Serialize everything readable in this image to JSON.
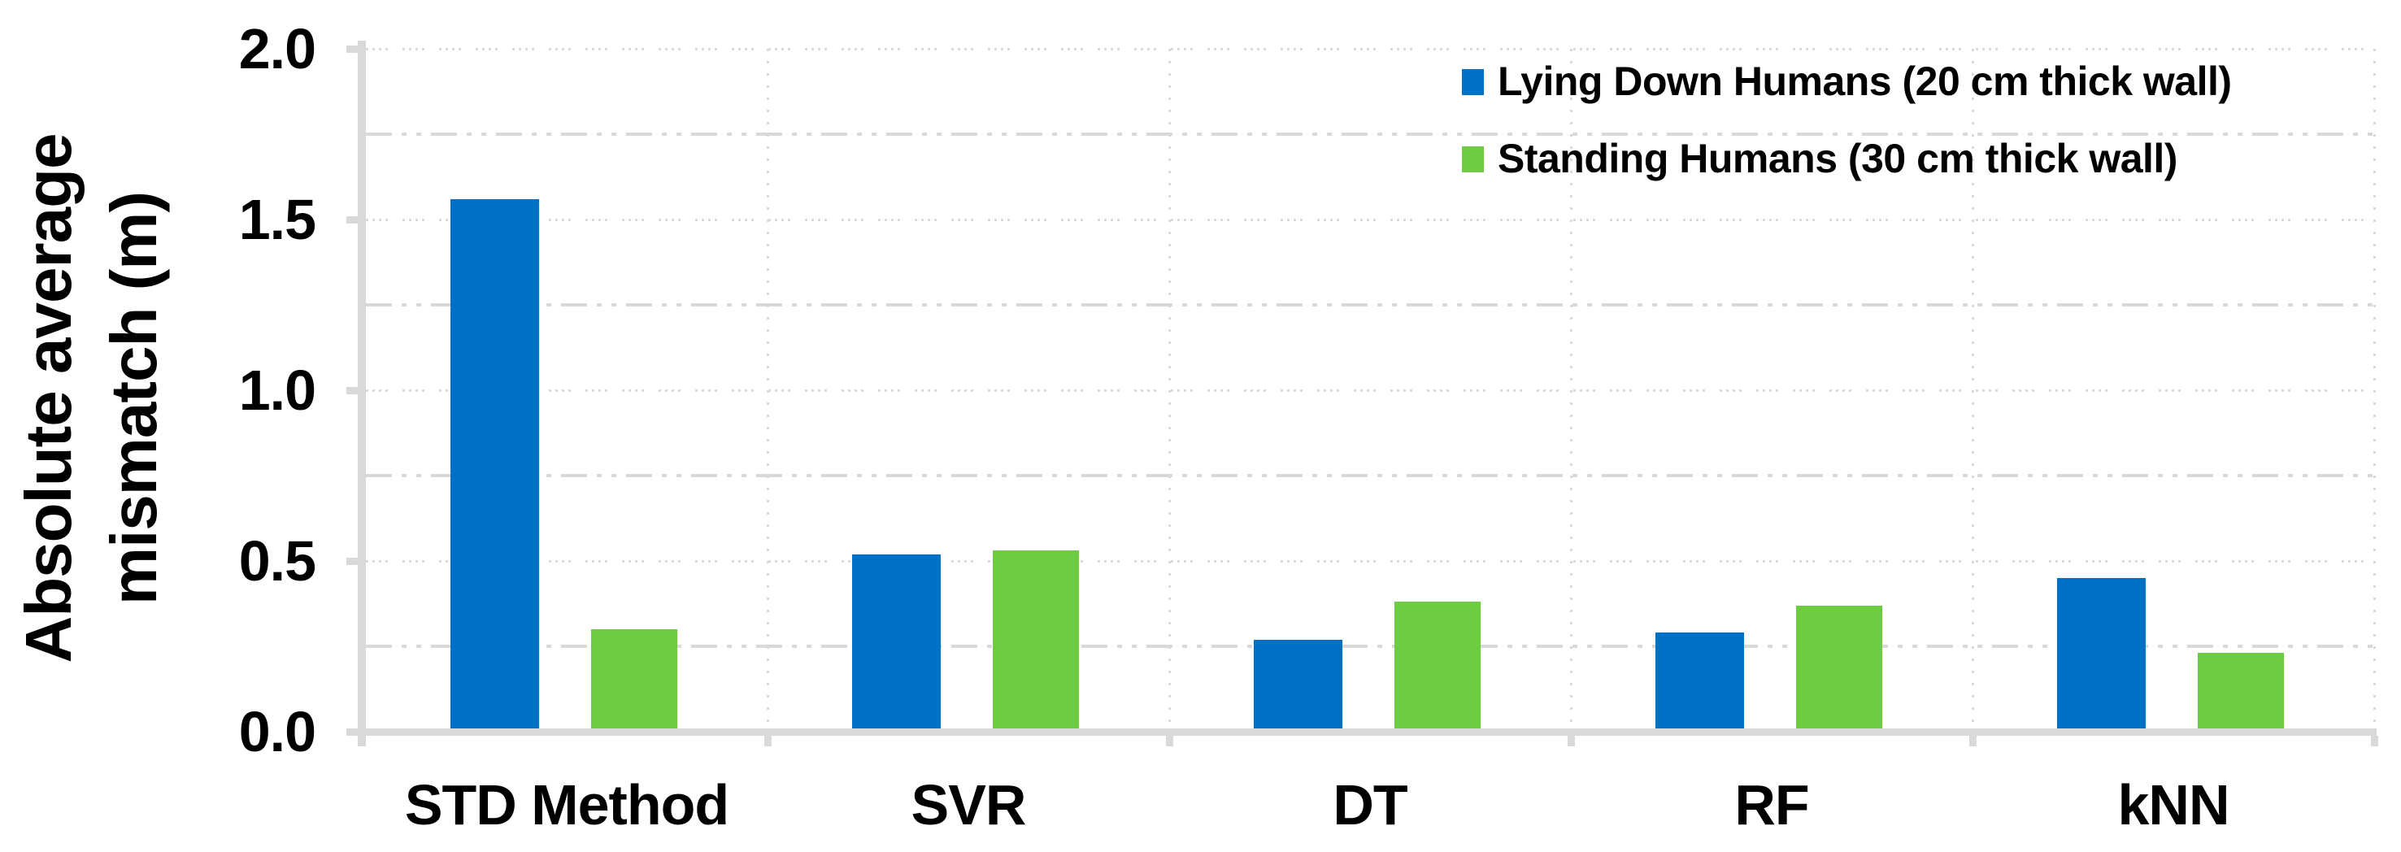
{
  "figure": {
    "background": "#FFFFFF",
    "text_color": "#000000",
    "axis_color": "#D9D9D9"
  },
  "chart_data": {
    "type": "bar",
    "title": "",
    "xlabel": "",
    "ylabel": "Absolute average mismatch (m)",
    "ylabel_lines": [
      "Absolute average",
      "mismatch (m)"
    ],
    "categories": [
      "STD Method",
      "SVR",
      "DT",
      "RF",
      "kNN"
    ],
    "series": [
      {
        "name": "Lying Down Humans (20 cm thick wall)",
        "color": "#0071C5",
        "values": [
          1.56,
          0.52,
          0.27,
          0.29,
          0.45
        ]
      },
      {
        "name": "Standing Humans (30 cm thick wall)",
        "color": "#6CCB40",
        "values": [
          0.3,
          0.53,
          0.38,
          0.37,
          0.23
        ]
      }
    ],
    "ylim": [
      0,
      2
    ],
    "yticks": [
      {
        "value": 0.0,
        "label": "0.0"
      },
      {
        "value": 0.5,
        "label": "0.5"
      },
      {
        "value": 1.0,
        "label": "1.0"
      },
      {
        "value": 1.5,
        "label": "1.5"
      },
      {
        "value": 2.0,
        "label": "2.0"
      }
    ],
    "major_gridline_step": 0.5,
    "minor_gridline_step": 0.25,
    "grid_color": "#D9D9D9",
    "grid_style": {
      "major": "dotted",
      "minor": "long-dash-dot-dot"
    },
    "vertical_separators": "dotted at category boundaries",
    "legend_position": "top-right",
    "legend_marker": "square"
  }
}
